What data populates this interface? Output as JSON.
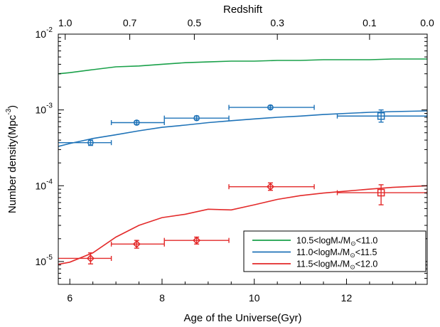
{
  "chart_data": {
    "type": "line",
    "xlabel": "Age of the Universe(Gyr)",
    "top_xlabel": "Redshift",
    "ylabel_main": "Number density(Mpc",
    "ylabel_sup": "-3",
    "ylabel_close": ")",
    "x_ticks": [
      6,
      8,
      10,
      12
    ],
    "xlim": [
      5.75,
      13.75
    ],
    "ylim": [
      5e-06,
      0.01
    ],
    "y_scale": "log",
    "y_ticks": [
      {
        "value": 0.01,
        "base": "10",
        "exp": "-2"
      },
      {
        "value": 0.001,
        "base": "10",
        "exp": "-3"
      },
      {
        "value": 0.0001,
        "base": "10",
        "exp": "-4"
      },
      {
        "value": 1e-05,
        "base": "10",
        "exp": "-5"
      }
    ],
    "top_ticks": [
      {
        "label": "1.0",
        "age": 5.9
      },
      {
        "label": "0.7",
        "age": 7.3
      },
      {
        "label": "0.5",
        "age": 8.7
      },
      {
        "label": "0.3",
        "age": 10.5
      },
      {
        "label": "0.1",
        "age": 12.5
      },
      {
        "label": "0.0",
        "age": 13.75
      }
    ],
    "legend_position": "bottom-right",
    "series": [
      {
        "name": "10.5<logM*/M⊙<11.0",
        "legend_parts": {
          "pre": "10.5<logM",
          "star": "*",
          "mid": "/M",
          "sun": "⊙",
          "post": "<11.0"
        },
        "color": "#1aa14a",
        "curve": [
          [
            5.75,
            0.003
          ],
          [
            6.0,
            0.0031
          ],
          [
            6.5,
            0.0034
          ],
          [
            7.0,
            0.0037
          ],
          [
            7.5,
            0.0038
          ],
          [
            8.0,
            0.004
          ],
          [
            8.5,
            0.0042
          ],
          [
            9.0,
            0.0043
          ],
          [
            9.5,
            0.0044
          ],
          [
            10.0,
            0.0044
          ],
          [
            10.5,
            0.0045
          ],
          [
            11.0,
            0.0045
          ],
          [
            11.5,
            0.0046
          ],
          [
            12.0,
            0.0046
          ],
          [
            12.5,
            0.0046
          ],
          [
            13.0,
            0.0047
          ],
          [
            13.75,
            0.0047
          ]
        ],
        "points": []
      },
      {
        "name": "11.0<logM*/M⊙<11.5",
        "legend_parts": {
          "pre": "11.0<logM",
          "star": "*",
          "mid": "/M",
          "sun": "⊙",
          "post": "<11.5"
        },
        "color": "#1f73b8",
        "curve": [
          [
            5.75,
            0.00033
          ],
          [
            6.0,
            0.00036
          ],
          [
            6.5,
            0.00042
          ],
          [
            7.0,
            0.00047
          ],
          [
            7.5,
            0.00053
          ],
          [
            8.0,
            0.00059
          ],
          [
            8.5,
            0.00063
          ],
          [
            9.0,
            0.00068
          ],
          [
            9.5,
            0.00072
          ],
          [
            10.0,
            0.00076
          ],
          [
            10.5,
            0.0008
          ],
          [
            11.0,
            0.00083
          ],
          [
            11.5,
            0.00087
          ],
          [
            12.0,
            0.0009
          ],
          [
            12.5,
            0.00093
          ],
          [
            13.0,
            0.00095
          ],
          [
            13.75,
            0.00097
          ]
        ],
        "points": [
          {
            "x": 6.45,
            "y": 0.00037,
            "xerr": [
              5.7,
              6.9
            ],
            "yerr": [
              0.00034,
              0.0004
            ],
            "marker": "circle"
          },
          {
            "x": 7.45,
            "y": 0.00068,
            "xerr": [
              6.9,
              8.05
            ],
            "yerr": [
              0.00064,
              0.00072
            ],
            "marker": "circle"
          },
          {
            "x": 8.75,
            "y": 0.00078,
            "xerr": [
              8.05,
              9.45
            ],
            "yerr": [
              0.00074,
              0.00083
            ],
            "marker": "circle"
          },
          {
            "x": 10.35,
            "y": 0.00108,
            "xerr": [
              9.45,
              11.3
            ],
            "yerr": [
              0.00103,
              0.00114
            ],
            "marker": "circle"
          },
          {
            "x": 12.75,
            "y": 0.00083,
            "xerr": [
              11.8,
              13.75
            ],
            "yerr": [
              0.00069,
              0.001
            ],
            "marker": "square"
          }
        ]
      },
      {
        "name": "11.5<logM*/M⊙<12.0",
        "legend_parts": {
          "pre": "11.5<logM",
          "star": "*",
          "mid": "/M",
          "sun": "⊙",
          "post": "<12.0"
        },
        "color": "#e32a2a",
        "curve": [
          [
            5.75,
            9.2e-06
          ],
          [
            6.0,
            9.8e-06
          ],
          [
            6.5,
            1.3e-05
          ],
          [
            7.0,
            2.1e-05
          ],
          [
            7.5,
            3e-05
          ],
          [
            8.0,
            3.8e-05
          ],
          [
            8.5,
            4.2e-05
          ],
          [
            9.0,
            4.9e-05
          ],
          [
            9.5,
            4.8e-05
          ],
          [
            10.0,
            5.6e-05
          ],
          [
            10.5,
            6.6e-05
          ],
          [
            11.0,
            7.4e-05
          ],
          [
            11.5,
            8e-05
          ],
          [
            12.0,
            8.5e-05
          ],
          [
            12.5,
            9e-05
          ],
          [
            13.0,
            9.5e-05
          ],
          [
            13.75,
            0.0001
          ]
        ],
        "points": [
          {
            "x": 6.45,
            "y": 1.1e-05,
            "xerr": [
              5.7,
              6.9
            ],
            "yerr": [
              9.3e-06,
              1.3e-05
            ],
            "marker": "diamond"
          },
          {
            "x": 7.45,
            "y": 1.7e-05,
            "xerr": [
              6.9,
              8.05
            ],
            "yerr": [
              1.5e-05,
              1.9e-05
            ],
            "marker": "diamond"
          },
          {
            "x": 8.75,
            "y": 1.9e-05,
            "xerr": [
              8.05,
              9.45
            ],
            "yerr": [
              1.7e-05,
              2.1e-05
            ],
            "marker": "diamond"
          },
          {
            "x": 10.35,
            "y": 9.7e-05,
            "xerr": [
              9.45,
              11.3
            ],
            "yerr": [
              8.7e-05,
              0.000109
            ],
            "marker": "diamond"
          },
          {
            "x": 12.75,
            "y": 8.1e-05,
            "xerr": [
              11.8,
              13.75
            ],
            "yerr": [
              5.6e-05,
              0.000103
            ],
            "marker": "square"
          }
        ]
      }
    ]
  }
}
